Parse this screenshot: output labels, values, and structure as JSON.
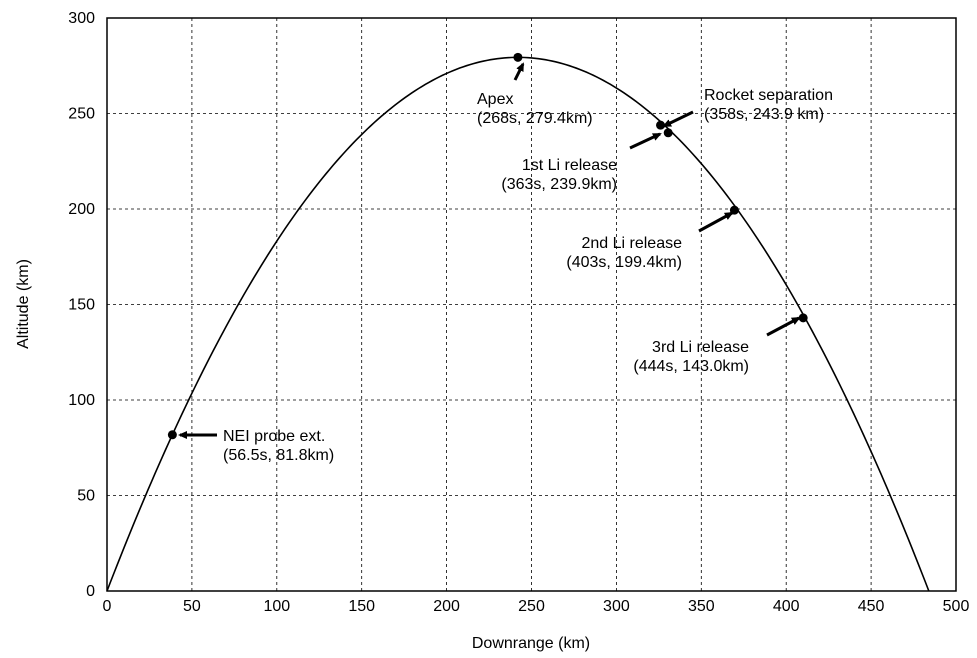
{
  "chart_data": {
    "type": "line",
    "title": "",
    "xlabel": "Downrange (km)",
    "ylabel": "Altitude (km)",
    "xlim": [
      0,
      500
    ],
    "ylim": [
      0,
      300
    ],
    "xticks": [
      0,
      50,
      100,
      150,
      200,
      250,
      300,
      350,
      400,
      450,
      500
    ],
    "yticks": [
      0,
      50,
      100,
      150,
      200,
      250,
      300
    ],
    "grid": true,
    "series": [
      {
        "type": "parabola",
        "apex": {
          "x": 242,
          "y": 279.4
        },
        "x_range": [
          0,
          484
        ]
      }
    ],
    "points": [
      {
        "x": 38.5,
        "y": 81.8
      },
      {
        "x": 242,
        "y": 279.4
      },
      {
        "x": 326,
        "y": 243.9
      },
      {
        "x": 330.5,
        "y": 239.9
      },
      {
        "x": 369.5,
        "y": 199.4
      },
      {
        "x": 410,
        "y": 143.0
      }
    ],
    "annotations": [
      {
        "lines": [
          "NEI probe ext.",
          "(56.5s, 81.8km)"
        ]
      },
      {
        "lines": [
          "Apex",
          "(268s, 279.4km)"
        ]
      },
      {
        "lines": [
          "Rocket separation",
          "(358s, 243.9 km)"
        ]
      },
      {
        "lines": [
          "1st Li release",
          "(363s, 239.9km)"
        ]
      },
      {
        "lines": [
          "2nd Li release",
          "(403s, 199.4km)"
        ]
      },
      {
        "lines": [
          "3rd Li release",
          "(444s, 143.0km)"
        ]
      }
    ]
  }
}
